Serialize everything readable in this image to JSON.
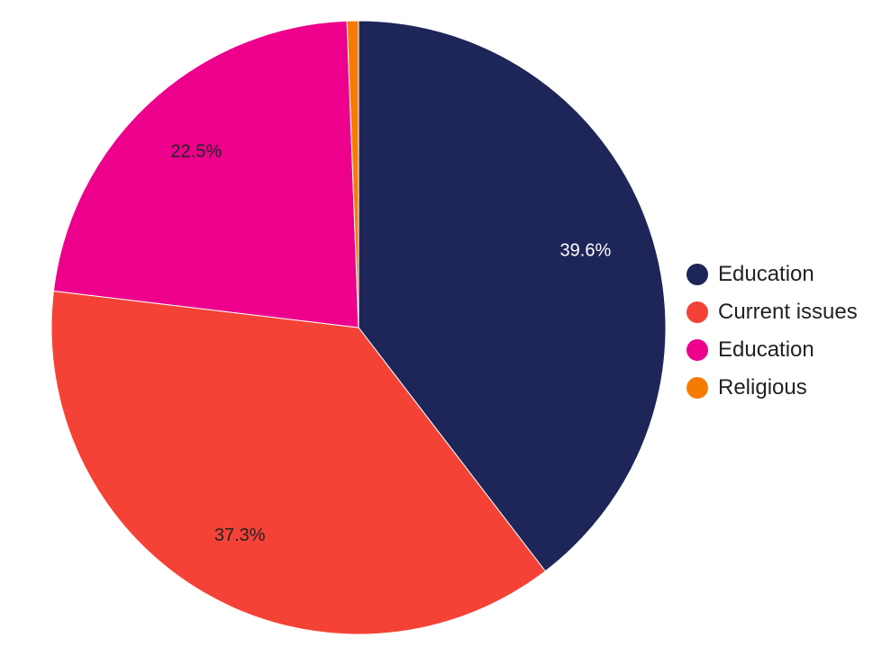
{
  "chart_data": {
    "type": "pie",
    "title": "",
    "legend_position": "right",
    "slices": [
      {
        "label": "Education",
        "value": 39.6,
        "display": "39.6%",
        "color": "#1e2559",
        "label_color": "#ffffff"
      },
      {
        "label": "Current issues",
        "value": 37.3,
        "display": "37.3%",
        "color": "#f44336",
        "label_color": "#222222"
      },
      {
        "label": "Education",
        "value": 22.5,
        "display": "22.5%",
        "color": "#ec008c",
        "label_color": "#222222"
      },
      {
        "label": "Religious",
        "value": 0.6,
        "display": "",
        "color": "#f57c00",
        "label_color": "#222222"
      }
    ]
  }
}
